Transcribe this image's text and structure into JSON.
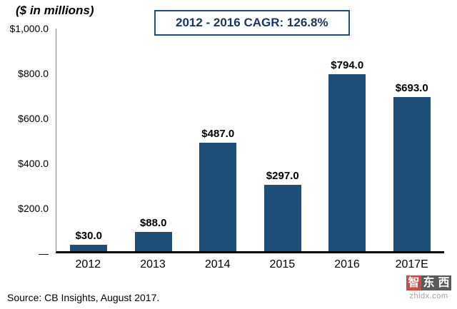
{
  "chart_data": {
    "type": "bar",
    "title": "2012 - 2016 CAGR: 126.8%",
    "ylabel": "($ in millions)",
    "categories": [
      "2012",
      "2013",
      "2014",
      "2015",
      "2016",
      "2017E"
    ],
    "values": [
      30.0,
      88.0,
      487.0,
      297.0,
      794.0,
      693.0
    ],
    "data_labels": [
      "$30.0",
      "$88.0",
      "$487.0",
      "$297.0",
      "$794.0",
      "$693.0"
    ],
    "ylim": [
      0,
      1000
    ],
    "y_ticks": [
      {
        "label": "$1,000.0",
        "value": 1000
      },
      {
        "label": "$800.0",
        "value": 800
      },
      {
        "label": "$600.0",
        "value": 600
      },
      {
        "label": "$400.0",
        "value": 400
      },
      {
        "label": "$200.0",
        "value": 200
      },
      {
        "label": "—",
        "value": 0
      }
    ],
    "grid": false,
    "legend": false,
    "bar_color": "#1F4E79"
  },
  "footer": {
    "source": "Source: CB Insights, August 2017."
  },
  "watermark": {
    "chars": [
      "智",
      "东",
      "西"
    ],
    "domain": "zhidx.com"
  }
}
